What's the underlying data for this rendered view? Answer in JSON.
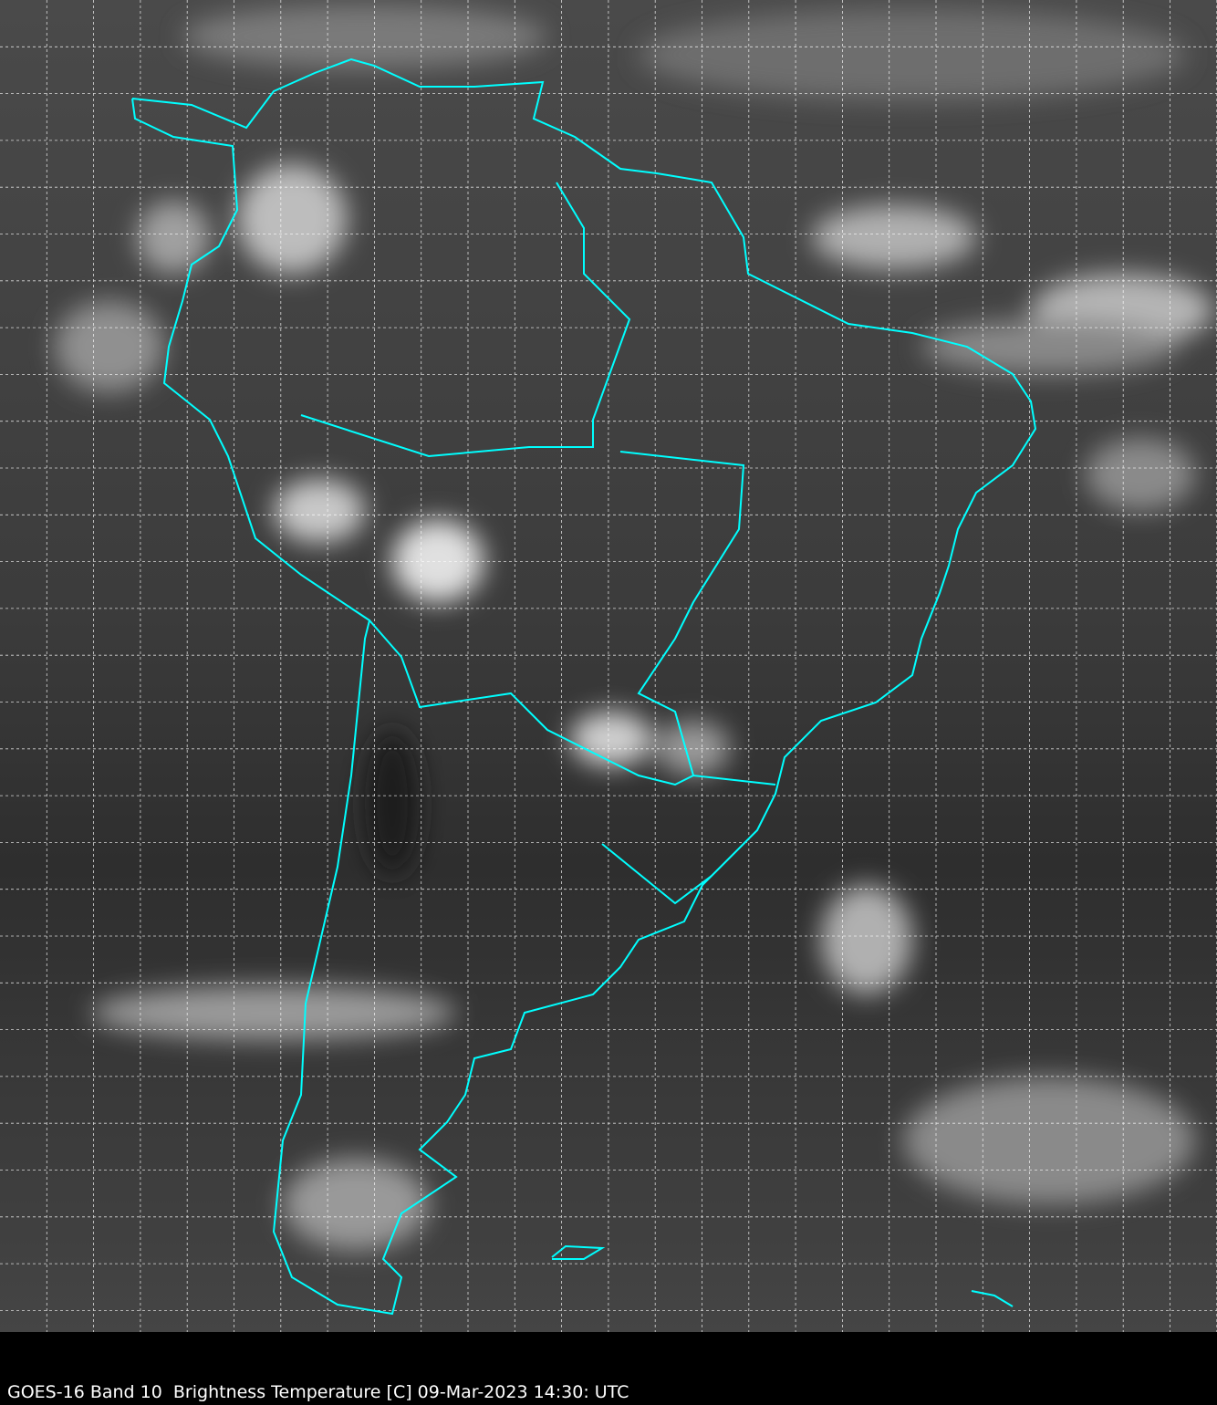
{
  "caption": "GOES-16 Band 10  Brightness Temperature [C] 09-Mar-2023 14:30: UTC",
  "colors": {
    "background": "#000000",
    "coastline": "#00ffff",
    "grid": "#ffffff",
    "ocean_base": "#3a3a3a"
  }
}
